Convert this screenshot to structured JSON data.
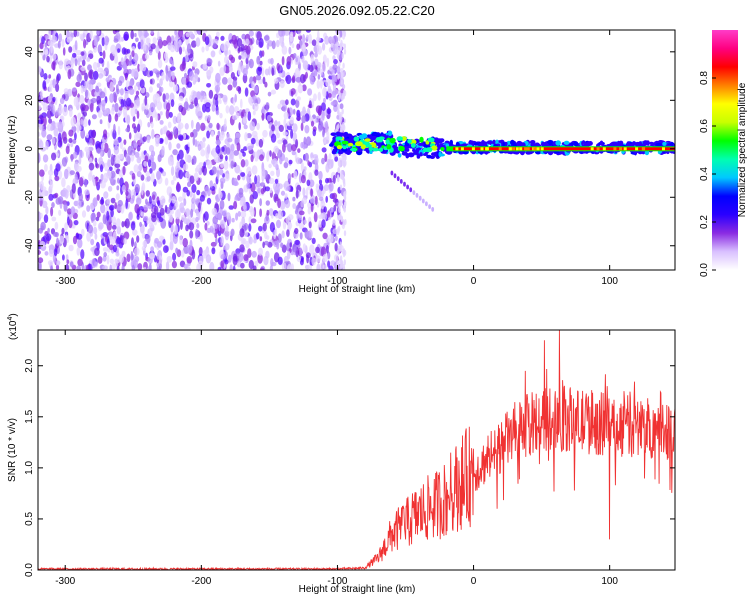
{
  "title": "GN05.2026.092.05.22.C20",
  "chart_data": [
    {
      "type": "heatmap",
      "xlabel": "Height of straight line (km)",
      "ylabel": "Frequency (Hz)",
      "xlim": [
        -320,
        148
      ],
      "ylim": [
        -50,
        49
      ],
      "xticks": [
        -300,
        -200,
        -100,
        0,
        100
      ],
      "yticks": [
        -40,
        -20,
        0,
        20,
        40
      ],
      "colorbar": {
        "label": "Normalized spectral amplitude",
        "range": [
          0,
          1
        ],
        "ticks": [
          0.0,
          0.2,
          0.4,
          0.6,
          0.8
        ],
        "colors": [
          "#ffffff",
          "#d9c0ff",
          "#8a2be2",
          "#2a00ff",
          "#0000ff",
          "#00c8ff",
          "#00ffb0",
          "#00ff00",
          "#c8ff00",
          "#ffff00",
          "#ff8000",
          "#ff0000",
          "#ff0080",
          "#ff3cc8"
        ]
      },
      "regions": [
        {
          "name": "",
          "x_range": [
            -320,
            -95
          ],
          "freq_range": [
            -50,
            49
          ],
          "amplitude": 0.15
        },
        {
          "name": "",
          "x_range": [
            -105,
            148
          ],
          "freq_center": 0,
          "amplitude": 0.9
        },
        {
          "name": "",
          "x": [
            -60,
            -30
          ],
          "freq": [
            -10,
            -25
          ],
          "amplitude": 0.15
        }
      ]
    },
    {
      "type": "line",
      "xlabel": "Height of straight line (km)",
      "ylabel": "SNR (10 * v/v)",
      "multiplier": "(x10",
      "multiplier_exp": "4",
      "multiplier_close": ")",
      "xlim": [
        -320,
        148
      ],
      "ylim": [
        0,
        2.35
      ],
      "xticks": [
        -300,
        -200,
        -100,
        0,
        100
      ],
      "yticks": [
        "0.0",
        "0.5",
        "1.0",
        "1.5",
        "2.0"
      ],
      "color": "#f03232",
      "envelope": [
        {
          "x": -320,
          "y": 0.01
        },
        {
          "x": -100,
          "y": 0.01
        },
        {
          "x": -80,
          "y": 0.02
        },
        {
          "x": -70,
          "y": 0.12
        },
        {
          "x": -60,
          "y": 0.35
        },
        {
          "x": -50,
          "y": 0.45
        },
        {
          "x": -40,
          "y": 0.55
        },
        {
          "x": -20,
          "y": 0.7
        },
        {
          "x": -10,
          "y": 0.85
        },
        {
          "x": 0,
          "y": 0.95
        },
        {
          "x": 15,
          "y": 1.15
        },
        {
          "x": 30,
          "y": 1.35
        },
        {
          "x": 45,
          "y": 1.45
        },
        {
          "x": 60,
          "y": 1.5
        },
        {
          "x": 80,
          "y": 1.45
        },
        {
          "x": 100,
          "y": 1.42
        },
        {
          "x": 120,
          "y": 1.4
        },
        {
          "x": 148,
          "y": 1.38
        }
      ],
      "peaks": [
        {
          "x": 63,
          "y": 2.35
        },
        {
          "x": 52,
          "y": 2.25
        },
        {
          "x": 38,
          "y": 1.95
        },
        {
          "x": 100,
          "y": 0.3
        },
        {
          "x": -52,
          "y": 0.6
        },
        {
          "x": -45,
          "y": 0.75
        },
        {
          "x": -28,
          "y": 0.95
        }
      ]
    }
  ]
}
